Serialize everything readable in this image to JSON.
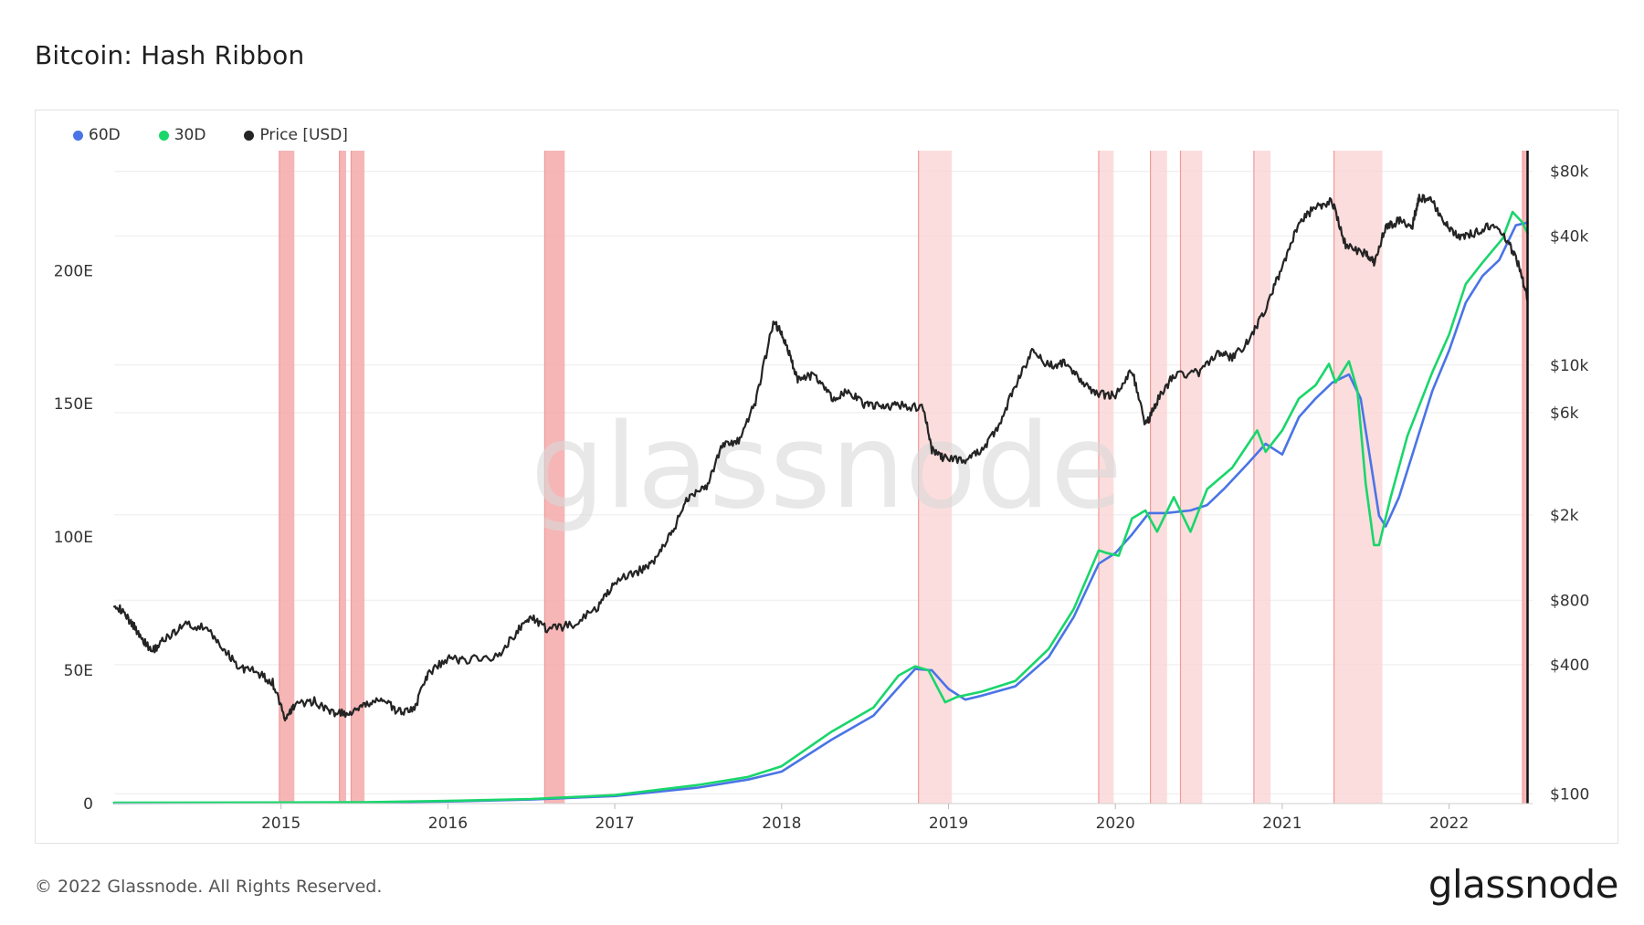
{
  "header": {
    "title": "Bitcoin: Hash Ribbon"
  },
  "footer": {
    "copyright": "© 2022 Glassnode. All Rights Reserved.",
    "brand": "glassnode"
  },
  "watermark": "glassnode",
  "colors": {
    "s60": "#4a74e6",
    "s30": "#19d66b",
    "price": "#242424",
    "band": "#fbd2d2",
    "bandStrong": "#f5a9a9",
    "grid": "#ececec"
  },
  "chart_data": {
    "type": "line",
    "title": "Bitcoin: Hash Ribbon",
    "legend": [
      {
        "name": "60D",
        "color": "#4a74e6"
      },
      {
        "name": "30D",
        "color": "#19d66b"
      },
      {
        "name": "Price [USD]",
        "color": "#242424"
      }
    ],
    "x_range": [
      2014.0,
      2022.5
    ],
    "x_ticks": [
      {
        "label": "2015",
        "value": 2015
      },
      {
        "label": "2016",
        "value": 2016
      },
      {
        "label": "2017",
        "value": 2017
      },
      {
        "label": "2018",
        "value": 2018
      },
      {
        "label": "2019",
        "value": 2019
      },
      {
        "label": "2020",
        "value": 2020
      },
      {
        "label": "2021",
        "value": 2021
      },
      {
        "label": "2022",
        "value": 2022
      }
    ],
    "y_left": {
      "unit": "E hash/s",
      "range": [
        0,
        245
      ],
      "ticks": [
        {
          "label": "0",
          "value": 0
        },
        {
          "label": "50E",
          "value": 50
        },
        {
          "label": "100E",
          "value": 100
        },
        {
          "label": "150E",
          "value": 150
        },
        {
          "label": "200E",
          "value": 200
        }
      ]
    },
    "y_right": {
      "unit": "USD (log)",
      "range": [
        90,
        100000
      ],
      "ticks": [
        {
          "label": "$100",
          "value": 100
        },
        {
          "label": "$400",
          "value": 400
        },
        {
          "label": "$800",
          "value": 800
        },
        {
          "label": "$2k",
          "value": 2000
        },
        {
          "label": "$6k",
          "value": 6000
        },
        {
          "label": "$10k",
          "value": 10000
        },
        {
          "label": "$40k",
          "value": 40000
        },
        {
          "label": "$80k",
          "value": 80000
        }
      ]
    },
    "capitulation_bands": [
      [
        2014.99,
        2015.08,
        0
      ],
      [
        2015.35,
        2015.39,
        0
      ],
      [
        2015.42,
        2015.5,
        0
      ],
      [
        2016.58,
        2016.7,
        0
      ],
      [
        2018.82,
        2019.02,
        1
      ],
      [
        2019.9,
        2019.99,
        1
      ],
      [
        2020.21,
        2020.31,
        1
      ],
      [
        2020.39,
        2020.52,
        1
      ],
      [
        2020.83,
        2020.93,
        1
      ],
      [
        2021.31,
        2021.6,
        1
      ],
      [
        2022.44,
        2022.47,
        0
      ]
    ],
    "series": [
      {
        "name": "60D",
        "points": [
          [
            2014.0,
            0.2
          ],
          [
            2015.0,
            0.3
          ],
          [
            2015.5,
            0.4
          ],
          [
            2016.0,
            0.8
          ],
          [
            2016.5,
            1.5
          ],
          [
            2017.0,
            2.8
          ],
          [
            2017.5,
            6
          ],
          [
            2017.8,
            9
          ],
          [
            2018.0,
            12
          ],
          [
            2018.3,
            24
          ],
          [
            2018.55,
            33
          ],
          [
            2018.72,
            45
          ],
          [
            2018.8,
            50.5
          ],
          [
            2018.9,
            50
          ],
          [
            2019.0,
            43
          ],
          [
            2019.1,
            39
          ],
          [
            2019.2,
            40.5
          ],
          [
            2019.4,
            44
          ],
          [
            2019.6,
            55
          ],
          [
            2019.75,
            70
          ],
          [
            2019.9,
            90
          ],
          [
            2020.0,
            94
          ],
          [
            2020.1,
            101
          ],
          [
            2020.2,
            109
          ],
          [
            2020.3,
            109
          ],
          [
            2020.45,
            110
          ],
          [
            2020.55,
            112
          ],
          [
            2020.65,
            118
          ],
          [
            2020.8,
            128
          ],
          [
            2020.9,
            135
          ],
          [
            2021.0,
            131
          ],
          [
            2021.1,
            145
          ],
          [
            2021.2,
            152
          ],
          [
            2021.3,
            158
          ],
          [
            2021.4,
            161
          ],
          [
            2021.47,
            152
          ],
          [
            2021.53,
            128
          ],
          [
            2021.58,
            108
          ],
          [
            2021.62,
            104
          ],
          [
            2021.7,
            115
          ],
          [
            2021.8,
            135
          ],
          [
            2021.9,
            155
          ],
          [
            2022.0,
            170
          ],
          [
            2022.1,
            188
          ],
          [
            2022.2,
            198
          ],
          [
            2022.3,
            204
          ],
          [
            2022.4,
            217
          ],
          [
            2022.47,
            218
          ]
        ]
      },
      {
        "name": "30D",
        "points": [
          [
            2014.0,
            0.3
          ],
          [
            2015.0,
            0.4
          ],
          [
            2015.5,
            0.5
          ],
          [
            2016.0,
            1.0
          ],
          [
            2016.5,
            1.7
          ],
          [
            2017.0,
            3.2
          ],
          [
            2017.5,
            7
          ],
          [
            2017.8,
            10
          ],
          [
            2018.0,
            14
          ],
          [
            2018.3,
            27
          ],
          [
            2018.55,
            36
          ],
          [
            2018.7,
            48
          ],
          [
            2018.8,
            51.5
          ],
          [
            2018.88,
            50
          ],
          [
            2018.93,
            44
          ],
          [
            2018.98,
            38
          ],
          [
            2019.05,
            40
          ],
          [
            2019.2,
            42
          ],
          [
            2019.4,
            46
          ],
          [
            2019.6,
            58
          ],
          [
            2019.75,
            73
          ],
          [
            2019.9,
            95
          ],
          [
            2019.95,
            94
          ],
          [
            2020.02,
            93
          ],
          [
            2020.1,
            107
          ],
          [
            2020.18,
            110
          ],
          [
            2020.25,
            102
          ],
          [
            2020.35,
            115
          ],
          [
            2020.45,
            102
          ],
          [
            2020.55,
            118
          ],
          [
            2020.7,
            126
          ],
          [
            2020.85,
            140
          ],
          [
            2020.9,
            132
          ],
          [
            2021.0,
            140
          ],
          [
            2021.1,
            152
          ],
          [
            2021.2,
            157
          ],
          [
            2021.28,
            165
          ],
          [
            2021.32,
            158
          ],
          [
            2021.4,
            166
          ],
          [
            2021.45,
            155
          ],
          [
            2021.5,
            120
          ],
          [
            2021.55,
            97
          ],
          [
            2021.58,
            97
          ],
          [
            2021.65,
            115
          ],
          [
            2021.75,
            138
          ],
          [
            2021.9,
            162
          ],
          [
            2022.0,
            176
          ],
          [
            2022.1,
            195
          ],
          [
            2022.2,
            203
          ],
          [
            2022.32,
            212
          ],
          [
            2022.38,
            222
          ],
          [
            2022.44,
            218
          ],
          [
            2022.47,
            214
          ]
        ]
      },
      {
        "name": "Price [USD]",
        "points": [
          [
            2014.0,
            780
          ],
          [
            2014.08,
            660
          ],
          [
            2014.15,
            560
          ],
          [
            2014.22,
            460
          ],
          [
            2014.3,
            520
          ],
          [
            2014.42,
            620
          ],
          [
            2014.55,
            590
          ],
          [
            2014.65,
            480
          ],
          [
            2014.75,
            390
          ],
          [
            2014.85,
            370
          ],
          [
            2014.95,
            330
          ],
          [
            2015.03,
            220
          ],
          [
            2015.08,
            260
          ],
          [
            2015.2,
            270
          ],
          [
            2015.3,
            240
          ],
          [
            2015.4,
            235
          ],
          [
            2015.5,
            255
          ],
          [
            2015.6,
            280
          ],
          [
            2015.7,
            240
          ],
          [
            2015.8,
            250
          ],
          [
            2015.88,
            360
          ],
          [
            2016.0,
            430
          ],
          [
            2016.1,
            420
          ],
          [
            2016.3,
            440
          ],
          [
            2016.42,
            580
          ],
          [
            2016.5,
            670
          ],
          [
            2016.6,
            580
          ],
          [
            2016.75,
            620
          ],
          [
            2016.9,
            740
          ],
          [
            2017.0,
            970
          ],
          [
            2017.15,
            1100
          ],
          [
            2017.25,
            1250
          ],
          [
            2017.35,
            1700
          ],
          [
            2017.45,
            2500
          ],
          [
            2017.55,
            2700
          ],
          [
            2017.65,
            4300
          ],
          [
            2017.75,
            4400
          ],
          [
            2017.85,
            7000
          ],
          [
            2017.95,
            16000
          ],
          [
            2018.0,
            14000
          ],
          [
            2018.05,
            11000
          ],
          [
            2018.1,
            8500
          ],
          [
            2018.2,
            9000
          ],
          [
            2018.3,
            7000
          ],
          [
            2018.4,
            7500
          ],
          [
            2018.5,
            6500
          ],
          [
            2018.6,
            6400
          ],
          [
            2018.7,
            6500
          ],
          [
            2018.85,
            6300
          ],
          [
            2018.9,
            4000
          ],
          [
            2018.97,
            3700
          ],
          [
            2019.1,
            3600
          ],
          [
            2019.2,
            4000
          ],
          [
            2019.3,
            5200
          ],
          [
            2019.4,
            8000
          ],
          [
            2019.5,
            11500
          ],
          [
            2019.6,
            10000
          ],
          [
            2019.7,
            10200
          ],
          [
            2019.8,
            8300
          ],
          [
            2019.9,
            7300
          ],
          [
            2020.0,
            7200
          ],
          [
            2020.1,
            9500
          ],
          [
            2020.18,
            5200
          ],
          [
            2020.25,
            6800
          ],
          [
            2020.35,
            9000
          ],
          [
            2020.5,
            9200
          ],
          [
            2020.62,
            11500
          ],
          [
            2020.7,
            10700
          ],
          [
            2020.8,
            13000
          ],
          [
            2020.9,
            18000
          ],
          [
            2021.0,
            29000
          ],
          [
            2021.1,
            46000
          ],
          [
            2021.2,
            55000
          ],
          [
            2021.3,
            58000
          ],
          [
            2021.38,
            36000
          ],
          [
            2021.5,
            33000
          ],
          [
            2021.55,
            30000
          ],
          [
            2021.62,
            44000
          ],
          [
            2021.7,
            47000
          ],
          [
            2021.78,
            45000
          ],
          [
            2021.82,
            61000
          ],
          [
            2021.9,
            58000
          ],
          [
            2021.97,
            47000
          ],
          [
            2022.05,
            40000
          ],
          [
            2022.15,
            41000
          ],
          [
            2022.25,
            45000
          ],
          [
            2022.35,
            38000
          ],
          [
            2022.42,
            29000
          ],
          [
            2022.47,
            20000
          ]
        ]
      }
    ]
  }
}
